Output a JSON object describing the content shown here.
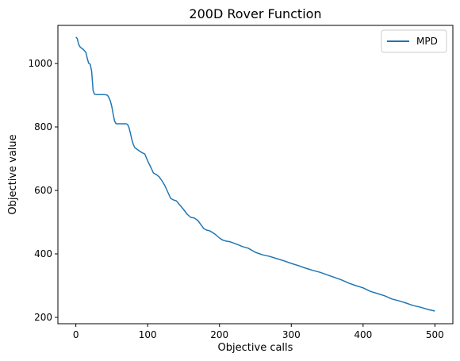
{
  "chart_data": {
    "type": "line",
    "title": "200D Rover Function",
    "xlabel": "Objective calls",
    "ylabel": "Objective value",
    "xlim": [
      -25,
      525
    ],
    "ylim": [
      180,
      1120
    ],
    "xticks": [
      0,
      100,
      200,
      300,
      400,
      500
    ],
    "yticks": [
      200,
      400,
      600,
      800,
      1000
    ],
    "grid": false,
    "legend_position": "top-right",
    "series": [
      {
        "name": "MPD",
        "color": "#1f77b4",
        "x": [
          0,
          2,
          4,
          6,
          8,
          10,
          12,
          14,
          16,
          18,
          20,
          22,
          24,
          26,
          28,
          30,
          35,
          40,
          44,
          46,
          48,
          50,
          52,
          54,
          56,
          60,
          65,
          70,
          72,
          74,
          76,
          78,
          80,
          82,
          85,
          88,
          90,
          93,
          96,
          100,
          105,
          108,
          112,
          116,
          120,
          124,
          128,
          132,
          136,
          140,
          150,
          155,
          160,
          165,
          170,
          178,
          182,
          186,
          190,
          195,
          200,
          205,
          210,
          215,
          220,
          228,
          232,
          240,
          250,
          260,
          270,
          280,
          290,
          300,
          310,
          320,
          330,
          340,
          350,
          360,
          370,
          380,
          390,
          400,
          410,
          420,
          430,
          440,
          450,
          460,
          470,
          480,
          490,
          500
        ],
        "values": [
          1083,
          1078,
          1060,
          1052,
          1048,
          1045,
          1040,
          1035,
          1015,
          1000,
          998,
          975,
          915,
          903,
          902,
          902,
          902,
          902,
          900,
          893,
          882,
          865,
          840,
          818,
          810,
          810,
          810,
          810,
          808,
          798,
          780,
          760,
          745,
          735,
          730,
          725,
          722,
          718,
          715,
          693,
          670,
          655,
          650,
          643,
          630,
          615,
          595,
          575,
          570,
          567,
          540,
          525,
          515,
          513,
          505,
          480,
          475,
          473,
          468,
          460,
          450,
          443,
          440,
          438,
          434,
          427,
          423,
          418,
          405,
          397,
          392,
          385,
          378,
          370,
          363,
          355,
          348,
          342,
          334,
          326,
          318,
          308,
          300,
          293,
          282,
          275,
          268,
          258,
          252,
          245,
          237,
          232,
          225,
          220
        ]
      }
    ]
  }
}
